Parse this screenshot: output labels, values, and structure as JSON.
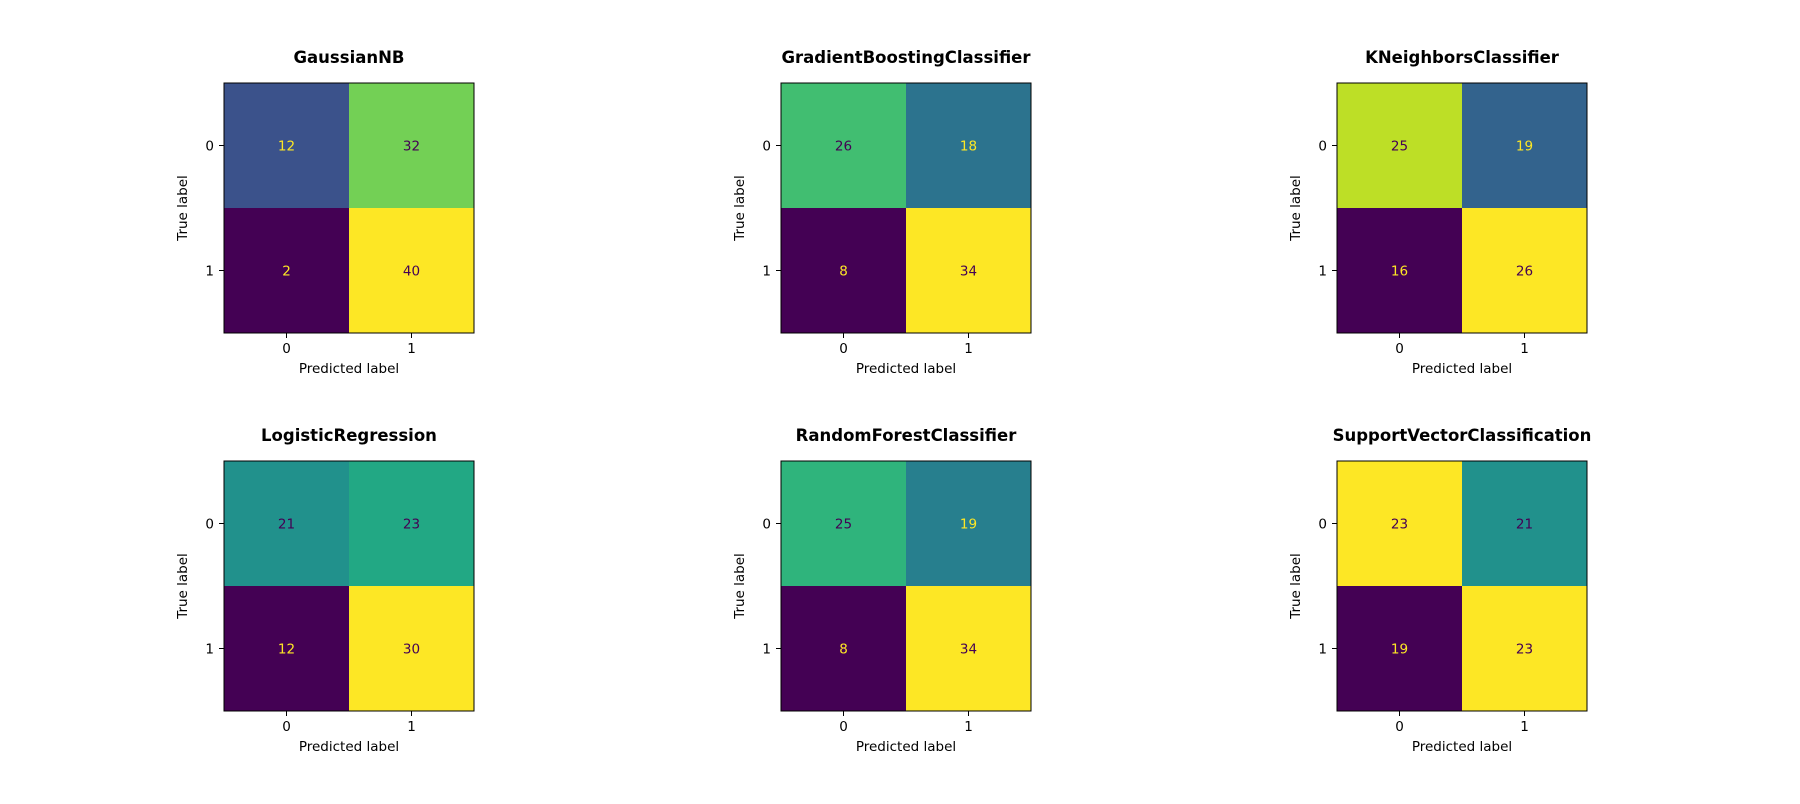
{
  "chart_data": [
    {
      "type": "heatmap",
      "title": "GaussianNB",
      "xlabel": "Predicted label",
      "ylabel": "True label",
      "x_tick_labels": [
        "0",
        "1"
      ],
      "y_tick_labels": [
        "0",
        "1"
      ],
      "matrix": [
        [
          12,
          32
        ],
        [
          2,
          40
        ]
      ],
      "cell_colors": [
        [
          "#3b528b",
          "#73d055"
        ],
        [
          "#440154",
          "#fde725"
        ]
      ],
      "text_colors": [
        [
          "#fde725",
          "#440154"
        ],
        [
          "#fde725",
          "#440154"
        ]
      ]
    },
    {
      "type": "heatmap",
      "title": "GradientBoostingClassifier",
      "xlabel": "Predicted label",
      "ylabel": "True label",
      "x_tick_labels": [
        "0",
        "1"
      ],
      "y_tick_labels": [
        "0",
        "1"
      ],
      "matrix": [
        [
          26,
          18
        ],
        [
          8,
          34
        ]
      ],
      "cell_colors": [
        [
          "#41be71",
          "#2c738e"
        ],
        [
          "#440154",
          "#fde725"
        ]
      ],
      "text_colors": [
        [
          "#440154",
          "#fde725"
        ],
        [
          "#fde725",
          "#440154"
        ]
      ]
    },
    {
      "type": "heatmap",
      "title": "KNeighborsClassifier",
      "xlabel": "Predicted label",
      "ylabel": "True label",
      "x_tick_labels": [
        "0",
        "1"
      ],
      "y_tick_labels": [
        "0",
        "1"
      ],
      "matrix": [
        [
          25,
          19
        ],
        [
          16,
          26
        ]
      ],
      "cell_colors": [
        [
          "#bddf26",
          "#33638d"
        ],
        [
          "#440154",
          "#fde725"
        ]
      ],
      "text_colors": [
        [
          "#440154",
          "#fde725"
        ],
        [
          "#fde725",
          "#440154"
        ]
      ]
    },
    {
      "type": "heatmap",
      "title": "LogisticRegression",
      "xlabel": "Predicted label",
      "ylabel": "True label",
      "x_tick_labels": [
        "0",
        "1"
      ],
      "y_tick_labels": [
        "0",
        "1"
      ],
      "matrix": [
        [
          21,
          23
        ],
        [
          12,
          30
        ]
      ],
      "cell_colors": [
        [
          "#21918c",
          "#22a884"
        ],
        [
          "#440154",
          "#fde725"
        ]
      ],
      "text_colors": [
        [
          "#440154",
          "#440154"
        ],
        [
          "#fde725",
          "#440154"
        ]
      ]
    },
    {
      "type": "heatmap",
      "title": "RandomForestClassifier",
      "xlabel": "Predicted label",
      "ylabel": "True label",
      "x_tick_labels": [
        "0",
        "1"
      ],
      "y_tick_labels": [
        "0",
        "1"
      ],
      "matrix": [
        [
          25,
          19
        ],
        [
          8,
          34
        ]
      ],
      "cell_colors": [
        [
          "#2fb47c",
          "#277f8e"
        ],
        [
          "#440154",
          "#fde725"
        ]
      ],
      "text_colors": [
        [
          "#440154",
          "#fde725"
        ],
        [
          "#fde725",
          "#440154"
        ]
      ]
    },
    {
      "type": "heatmap",
      "title": "SupportVectorClassification",
      "xlabel": "Predicted label",
      "ylabel": "True label",
      "x_tick_labels": [
        "0",
        "1"
      ],
      "y_tick_labels": [
        "0",
        "1"
      ],
      "matrix": [
        [
          23,
          21
        ],
        [
          19,
          23
        ]
      ],
      "cell_colors": [
        [
          "#fde725",
          "#21918c"
        ],
        [
          "#440154",
          "#fde725"
        ]
      ],
      "text_colors": [
        [
          "#440154",
          "#440154"
        ],
        [
          "#fde725",
          "#440154"
        ]
      ]
    }
  ]
}
